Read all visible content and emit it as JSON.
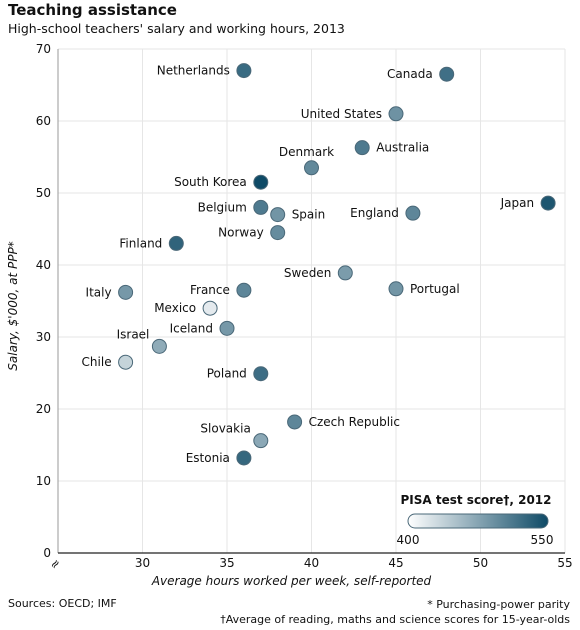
{
  "header": {
    "title": "Teaching assistance",
    "subtitle": "High-school teachers' salary and working hours, 2013"
  },
  "footer": {
    "sources": "Sources: OECD; IMF",
    "note1": "* Purchasing-power parity",
    "note2": "†Average of reading, maths and science scores for 15-year-olds"
  },
  "chart_data": {
    "type": "scatter",
    "xlabel": "Average hours worked per week, self-reported",
    "ylabel": "Salary, $'000, at PPP*",
    "x_break_symbol": "≈",
    "xlim": [
      25,
      55
    ],
    "ylim": [
      0,
      70
    ],
    "xticks": [
      30,
      35,
      40,
      45,
      50,
      55
    ],
    "yticks": [
      0,
      10,
      20,
      30,
      40,
      50,
      60,
      70
    ],
    "grid": true,
    "color_scale": {
      "title": "PISA test score†, 2012",
      "min": 400,
      "max": 550,
      "min_label": "400",
      "max_label": "550",
      "color_low": "#ffffff",
      "color_high": "#0e4a66",
      "placement": "bottom-right"
    },
    "points": [
      {
        "label": "Netherlands",
        "x": 36,
        "y": 67,
        "score": 523,
        "label_side": "left"
      },
      {
        "label": "Canada",
        "x": 48,
        "y": 66.5,
        "score": 519,
        "label_side": "left"
      },
      {
        "label": "United States",
        "x": 45,
        "y": 61,
        "score": 490,
        "label_side": "left"
      },
      {
        "label": "Australia",
        "x": 43,
        "y": 56.3,
        "score": 510,
        "label_side": "right"
      },
      {
        "label": "Denmark",
        "x": 40,
        "y": 53.5,
        "score": 498,
        "label_side": "above"
      },
      {
        "label": "South Korea",
        "x": 37,
        "y": 51.5,
        "score": 550,
        "label_side": "left"
      },
      {
        "label": "Japan",
        "x": 54,
        "y": 48.6,
        "score": 540,
        "label_side": "left"
      },
      {
        "label": "Belgium",
        "x": 37,
        "y": 48,
        "score": 510,
        "label_side": "left"
      },
      {
        "label": "Spain",
        "x": 38,
        "y": 47,
        "score": 488,
        "label_side": "right"
      },
      {
        "label": "England",
        "x": 46,
        "y": 47.2,
        "score": 500,
        "label_side": "left"
      },
      {
        "label": "Norway",
        "x": 38,
        "y": 44.5,
        "score": 495,
        "label_side": "left"
      },
      {
        "label": "Finland",
        "x": 32,
        "y": 43,
        "score": 529,
        "label_side": "left"
      },
      {
        "label": "Sweden",
        "x": 42,
        "y": 38.9,
        "score": 482,
        "label_side": "left"
      },
      {
        "label": "Italy",
        "x": 29,
        "y": 36.2,
        "score": 485,
        "label_side": "left"
      },
      {
        "label": "France",
        "x": 36,
        "y": 36.5,
        "score": 500,
        "label_side": "left"
      },
      {
        "label": "Portugal",
        "x": 45,
        "y": 36.7,
        "score": 488,
        "label_side": "right"
      },
      {
        "label": "Mexico",
        "x": 34,
        "y": 34,
        "score": 417,
        "label_side": "left"
      },
      {
        "label": "Iceland",
        "x": 35,
        "y": 31.2,
        "score": 485,
        "label_side": "left"
      },
      {
        "label": "Israel",
        "x": 31,
        "y": 28.7,
        "score": 470,
        "label_side": "above-left"
      },
      {
        "label": "Chile",
        "x": 29,
        "y": 26.5,
        "score": 436,
        "label_side": "left"
      },
      {
        "label": "Poland",
        "x": 37,
        "y": 24.9,
        "score": 521,
        "label_side": "left"
      },
      {
        "label": "Czech Republic",
        "x": 39,
        "y": 18.2,
        "score": 500,
        "label_side": "right"
      },
      {
        "label": "Slovakia",
        "x": 37,
        "y": 15.6,
        "score": 472,
        "label_side": "above-left"
      },
      {
        "label": "Estonia",
        "x": 36,
        "y": 13.2,
        "score": 526,
        "label_side": "left"
      }
    ]
  }
}
